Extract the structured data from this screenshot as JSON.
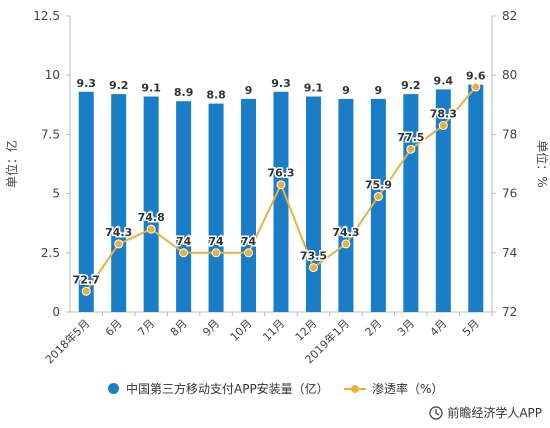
{
  "chart_data": {
    "type": "bar+line",
    "categories": [
      "2018年5月",
      "6月",
      "7月",
      "8月",
      "9月",
      "10月",
      "11月",
      "12月",
      "2019年1月",
      "2月",
      "3月",
      "4月",
      "5月"
    ],
    "series": [
      {
        "name": "中国第三方移动支付APP安装量（亿）",
        "type": "bar",
        "axis": "left",
        "values": [
          9.3,
          9.2,
          9.1,
          8.9,
          8.8,
          9,
          9.3,
          9.1,
          9,
          9,
          9.2,
          9.4,
          9.6
        ],
        "labels": [
          "9.3",
          "9.2",
          "9.1",
          "8.9",
          "8.8",
          "9",
          "9.3",
          "9.1",
          "9",
          "9",
          "9.2",
          "9.4",
          "9.6"
        ],
        "color": "#1a7dc8"
      },
      {
        "name": "渗透率（%）",
        "type": "line",
        "axis": "right",
        "values": [
          72.7,
          74.3,
          74.8,
          74,
          74,
          74,
          76.3,
          73.5,
          74.3,
          75.9,
          77.5,
          78.3,
          79.6
        ],
        "labels": [
          "72.7",
          "74.3",
          "74.8",
          "74",
          "74",
          "74",
          "76.3",
          "73.5",
          "74.3",
          "75.9",
          "77.5",
          "78.3",
          ""
        ],
        "color": "#e8b23a"
      }
    ],
    "ylabel": "单位：亿",
    "y2label": "单位：%",
    "ylim": [
      0,
      12.5
    ],
    "y2lim": [
      72,
      82
    ],
    "yticks": [
      "0",
      "2.5",
      "5",
      "7.5",
      "10",
      "12.5"
    ],
    "y2ticks": [
      "72",
      "74",
      "76",
      "78",
      "80",
      "82"
    ],
    "grid": false,
    "legend_position": "bottom"
  },
  "legend": {
    "bar_label": "中国第三方移动支付APP安装量（亿）",
    "line_label": "渗透率（%）"
  },
  "source": {
    "text": "前瞻经济学人APP"
  },
  "colors": {
    "bar": "#1a7dc8",
    "line": "#e8b23a"
  }
}
